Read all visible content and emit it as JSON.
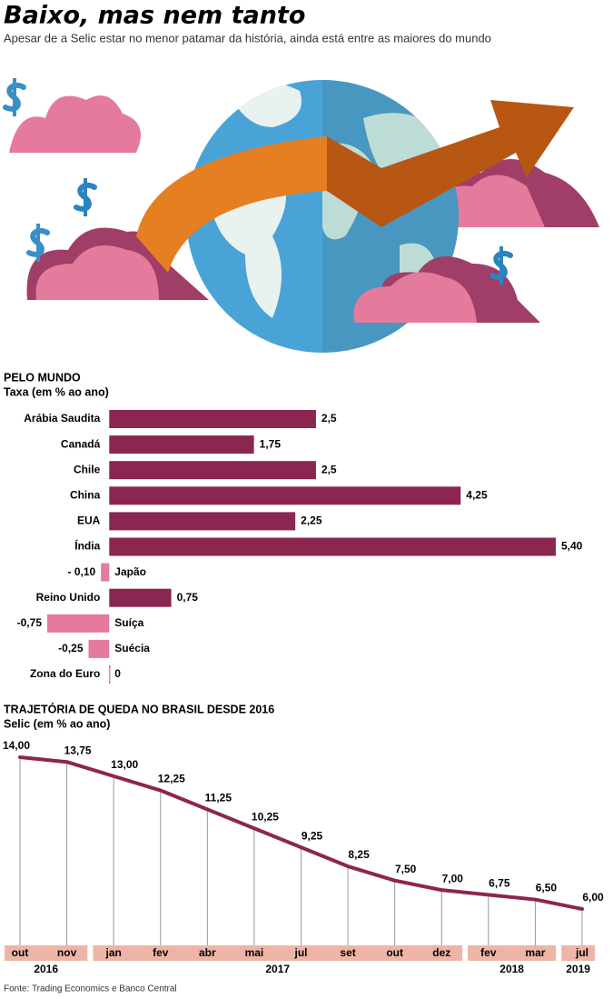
{
  "header": {
    "title": "Baixo, mas nem tanto",
    "subtitle": "Apesar de a Selic estar no menor patamar da história, ainda está entre as maiores do mundo"
  },
  "chart_data": [
    {
      "type": "hbar",
      "title": "PELO MUNDO",
      "subtitle": "Taxa (em % ao ano)",
      "categories": [
        "Arábia Saudita",
        "Canadá",
        "Chile",
        "China",
        "EUA",
        "Índia",
        "Japão",
        "Reino Unido",
        "Suíça",
        "Suécia",
        "Zona do Euro"
      ],
      "values": [
        2.5,
        1.75,
        2.5,
        4.25,
        2.25,
        5.4,
        -0.1,
        0.75,
        -0.75,
        -0.25,
        0
      ],
      "value_labels": [
        "2,5",
        "1,75",
        "2,5",
        "4,25",
        "2,25",
        "5,40",
        "- 0,10",
        "0,75",
        "-0,75",
        "-0,25",
        "0"
      ],
      "xlim": [
        -0.75,
        5.4
      ],
      "color": "#8b2651",
      "negative_color": "#e47b9c"
    },
    {
      "type": "line",
      "title": "TRAJETÓRIA DE QUEDA NO BRASIL DESDE 2016",
      "subtitle": "Selic (em % ao ano)",
      "groups": [
        {
          "label": "2016",
          "months": [
            "out",
            "nov"
          ]
        },
        {
          "label": "2017",
          "months": [
            "jan",
            "fev",
            "abr",
            "mai",
            "jul",
            "set",
            "out",
            "dez"
          ]
        },
        {
          "label": "2018",
          "months": [
            "fev",
            "mar"
          ]
        },
        {
          "label": "2019",
          "months": [
            "jul"
          ]
        }
      ],
      "values": [
        14,
        13.75,
        13,
        12.25,
        11.25,
        10.25,
        9.25,
        8.25,
        7.5,
        7,
        6.75,
        6.5,
        6
      ],
      "value_labels": [
        "14,00",
        "13,75",
        "13,00",
        "12,25",
        "11,25",
        "10,25",
        "9,25",
        "8,25",
        "7,50",
        "7,00",
        "6,75",
        "6,50",
        "6,00"
      ],
      "ylim": [
        6,
        14
      ],
      "color": "#8b2651",
      "axis_color": "#eeb5a6"
    }
  ],
  "source": "Fonte: Trading Economics e Banco Central"
}
